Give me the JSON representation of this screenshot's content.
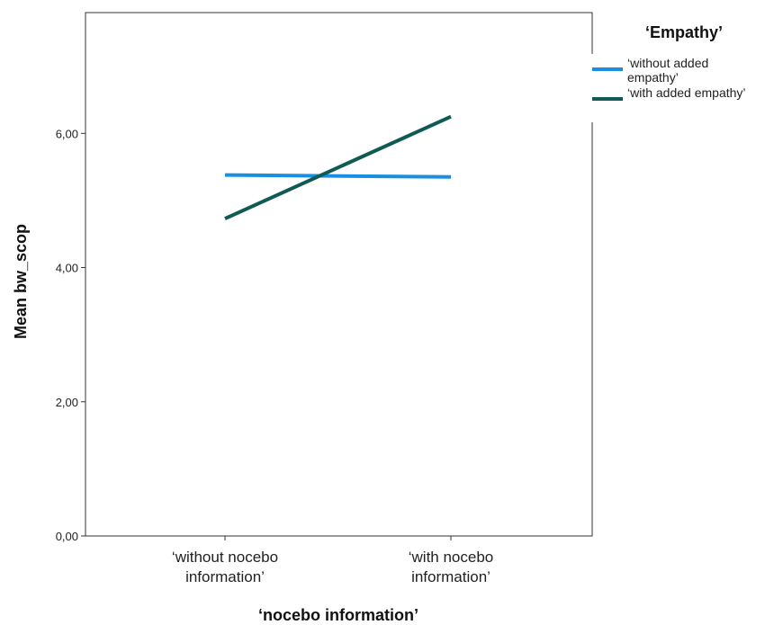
{
  "chart_data": {
    "type": "line",
    "categories": [
      "‘without nocebo information’",
      "‘with nocebo information’"
    ],
    "category_label_lines": [
      [
        "‘without nocebo",
        "information’"
      ],
      [
        "‘with nocebo",
        "information’"
      ]
    ],
    "xlabel": "‘nocebo information’",
    "ylabel": "Mean bw_scop",
    "ylim": [
      0,
      7.8
    ],
    "yticks": [
      0,
      2,
      4,
      6
    ],
    "ytick_labels": [
      "0,00",
      "2,00",
      "4,00",
      "6,00"
    ],
    "grid": false,
    "legend": {
      "title": "‘Empathy’",
      "placement": "top-right",
      "entries": [
        {
          "lines": [
            "‘without added",
            "empathy’"
          ],
          "color": "#1a8fe0"
        },
        {
          "lines": [
            "‘with added empathy’"
          ],
          "color": "#0f5a55"
        }
      ]
    },
    "series": [
      {
        "name": "‘without added empathy’",
        "values": [
          5.38,
          5.35
        ],
        "color": "#1a8fe0"
      },
      {
        "name": "‘with added empathy’",
        "values": [
          4.73,
          6.25
        ],
        "color": "#0f5a55"
      }
    ]
  }
}
